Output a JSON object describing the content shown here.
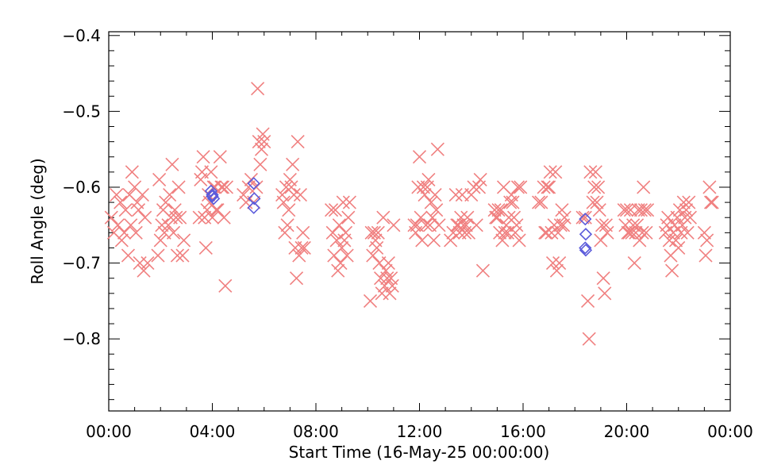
{
  "chart_data": {
    "type": "scatter",
    "xlabel": "Start Time (16-May-25 00:00:00)",
    "ylabel": "Roll Angle (deg)",
    "xlim": [
      0,
      24
    ],
    "ylim": [
      -0.9,
      -0.4
    ],
    "y_inverted": true,
    "grid": false,
    "x_ticks": [
      {
        "v": 0,
        "label": "00:00"
      },
      {
        "v": 4,
        "label": "04:00"
      },
      {
        "v": 8,
        "label": "08:00"
      },
      {
        "v": 12,
        "label": "12:00"
      },
      {
        "v": 16,
        "label": "16:00"
      },
      {
        "v": 20,
        "label": "20:00"
      },
      {
        "v": 24,
        "label": "00:00"
      }
    ],
    "y_ticks": [
      {
        "v": -0.4,
        "label": "−0.4"
      },
      {
        "v": -0.5,
        "label": "−0.5"
      },
      {
        "v": -0.6,
        "label": "−0.6"
      },
      {
        "v": -0.7,
        "label": "−0.7"
      },
      {
        "v": -0.8,
        "label": "−0.8"
      }
    ],
    "series": [
      {
        "marker": "x",
        "color": "#f08080",
        "points": [
          [
            0.1,
            -0.64
          ],
          [
            0.2,
            -0.66
          ],
          [
            0.3,
            -0.61
          ],
          [
            0.35,
            -0.65
          ],
          [
            0.45,
            -0.62
          ],
          [
            0.5,
            -0.67
          ],
          [
            0.6,
            -0.66
          ],
          [
            0.65,
            -0.63
          ],
          [
            0.75,
            -0.69
          ],
          [
            0.8,
            -0.61
          ],
          [
            0.85,
            -0.65
          ],
          [
            0.9,
            -0.58
          ],
          [
            1.0,
            -0.6
          ],
          [
            1.05,
            -0.66
          ],
          [
            1.1,
            -0.62
          ],
          [
            1.15,
            -0.63
          ],
          [
            1.2,
            -0.7
          ],
          [
            1.3,
            -0.61
          ],
          [
            1.35,
            -0.71
          ],
          [
            1.4,
            -0.64
          ],
          [
            1.5,
            -0.7
          ],
          [
            1.9,
            -0.69
          ],
          [
            1.95,
            -0.59
          ],
          [
            2.0,
            -0.67
          ],
          [
            2.05,
            -0.65
          ],
          [
            2.1,
            -0.63
          ],
          [
            2.15,
            -0.66
          ],
          [
            2.2,
            -0.62
          ],
          [
            2.3,
            -0.65
          ],
          [
            2.35,
            -0.61
          ],
          [
            2.4,
            -0.64
          ],
          [
            2.45,
            -0.57
          ],
          [
            2.5,
            -0.66
          ],
          [
            2.55,
            -0.63
          ],
          [
            2.6,
            -0.64
          ],
          [
            2.65,
            -0.69
          ],
          [
            2.7,
            -0.6
          ],
          [
            2.75,
            -0.64
          ],
          [
            2.85,
            -0.69
          ],
          [
            2.9,
            -0.67
          ],
          [
            3.5,
            -0.64
          ],
          [
            3.55,
            -0.59
          ],
          [
            3.6,
            -0.58
          ],
          [
            3.65,
            -0.56
          ],
          [
            3.7,
            -0.64
          ],
          [
            3.75,
            -0.68
          ],
          [
            3.8,
            -0.63
          ],
          [
            3.85,
            -0.61
          ],
          [
            3.9,
            -0.62
          ],
          [
            3.95,
            -0.58
          ],
          [
            4.0,
            -0.64
          ],
          [
            4.05,
            -0.6
          ],
          [
            4.1,
            -0.6
          ],
          [
            4.15,
            -0.63
          ],
          [
            4.2,
            -0.63
          ],
          [
            4.3,
            -0.56
          ],
          [
            4.35,
            -0.6
          ],
          [
            4.4,
            -0.6
          ],
          [
            4.45,
            -0.64
          ],
          [
            4.5,
            -0.73
          ],
          [
            4.55,
            -0.6
          ],
          [
            5.2,
            -0.61
          ],
          [
            5.3,
            -0.62
          ],
          [
            5.4,
            -0.6
          ],
          [
            5.5,
            -0.59
          ],
          [
            5.6,
            -0.62
          ],
          [
            5.7,
            -0.6
          ],
          [
            5.75,
            -0.47
          ],
          [
            5.8,
            -0.54
          ],
          [
            5.85,
            -0.57
          ],
          [
            5.9,
            -0.55
          ],
          [
            5.95,
            -0.53
          ],
          [
            6.0,
            -0.54
          ],
          [
            6.7,
            -0.61
          ],
          [
            6.75,
            -0.62
          ],
          [
            6.8,
            -0.66
          ],
          [
            6.85,
            -0.6
          ],
          [
            6.9,
            -0.65
          ],
          [
            6.95,
            -0.63
          ],
          [
            7.0,
            -0.59
          ],
          [
            7.05,
            -0.6
          ],
          [
            7.1,
            -0.57
          ],
          [
            7.15,
            -0.61
          ],
          [
            7.2,
            -0.68
          ],
          [
            7.25,
            -0.72
          ],
          [
            7.3,
            -0.54
          ],
          [
            7.35,
            -0.69
          ],
          [
            7.4,
            -0.61
          ],
          [
            7.45,
            -0.68
          ],
          [
            7.5,
            -0.66
          ],
          [
            7.55,
            -0.68
          ],
          [
            8.6,
            -0.63
          ],
          [
            8.65,
            -0.66
          ],
          [
            8.7,
            -0.69
          ],
          [
            8.75,
            -0.63
          ],
          [
            8.8,
            -0.67
          ],
          [
            8.85,
            -0.71
          ],
          [
            8.9,
            -0.65
          ],
          [
            8.95,
            -0.7
          ],
          [
            9.0,
            -0.68
          ],
          [
            9.05,
            -0.62
          ],
          [
            9.1,
            -0.67
          ],
          [
            9.15,
            -0.66
          ],
          [
            9.2,
            -0.69
          ],
          [
            9.25,
            -0.64
          ],
          [
            9.3,
            -0.62
          ],
          [
            10.1,
            -0.75
          ],
          [
            10.15,
            -0.66
          ],
          [
            10.2,
            -0.69
          ],
          [
            10.25,
            -0.66
          ],
          [
            10.3,
            -0.67
          ],
          [
            10.35,
            -0.68
          ],
          [
            10.4,
            -0.66
          ],
          [
            10.45,
            -0.7
          ],
          [
            10.5,
            -0.72
          ],
          [
            10.55,
            -0.74
          ],
          [
            10.6,
            -0.64
          ],
          [
            10.65,
            -0.73
          ],
          [
            10.7,
            -0.71
          ],
          [
            10.75,
            -0.72
          ],
          [
            10.8,
            -0.7
          ],
          [
            10.85,
            -0.74
          ],
          [
            10.9,
            -0.72
          ],
          [
            10.95,
            -0.73
          ],
          [
            11.0,
            -0.65
          ],
          [
            11.8,
            -0.65
          ],
          [
            11.85,
            -0.66
          ],
          [
            11.9,
            -0.65
          ],
          [
            11.95,
            -0.6
          ],
          [
            12.0,
            -0.56
          ],
          [
            12.05,
            -0.64
          ],
          [
            12.1,
            -0.67
          ],
          [
            12.15,
            -0.6
          ],
          [
            12.2,
            -0.61
          ],
          [
            12.25,
            -0.65
          ],
          [
            12.3,
            -0.6
          ],
          [
            12.35,
            -0.59
          ],
          [
            12.4,
            -0.65
          ],
          [
            12.45,
            -0.62
          ],
          [
            12.5,
            -0.64
          ],
          [
            12.55,
            -0.67
          ],
          [
            12.6,
            -0.61
          ],
          [
            12.65,
            -0.63
          ],
          [
            12.7,
            -0.55
          ],
          [
            12.75,
            -0.65
          ],
          [
            13.2,
            -0.67
          ],
          [
            13.3,
            -0.66
          ],
          [
            13.4,
            -0.61
          ],
          [
            13.45,
            -0.65
          ],
          [
            13.5,
            -0.65
          ],
          [
            13.55,
            -0.66
          ],
          [
            13.6,
            -0.64
          ],
          [
            13.65,
            -0.61
          ],
          [
            13.7,
            -0.65
          ],
          [
            13.75,
            -0.66
          ],
          [
            13.8,
            -0.65
          ],
          [
            13.85,
            -0.64
          ],
          [
            13.9,
            -0.66
          ],
          [
            14.0,
            -0.61
          ],
          [
            14.1,
            -0.6
          ],
          [
            14.2,
            -0.65
          ],
          [
            14.3,
            -0.6
          ],
          [
            14.35,
            -0.59
          ],
          [
            14.45,
            -0.71
          ],
          [
            14.9,
            -0.63
          ],
          [
            14.95,
            -0.64
          ],
          [
            15.0,
            -0.64
          ],
          [
            15.05,
            -0.63
          ],
          [
            15.1,
            -0.66
          ],
          [
            15.15,
            -0.63
          ],
          [
            15.2,
            -0.67
          ],
          [
            15.25,
            -0.6
          ],
          [
            15.3,
            -0.66
          ],
          [
            15.35,
            -0.65
          ],
          [
            15.4,
            -0.66
          ],
          [
            15.45,
            -0.64
          ],
          [
            15.5,
            -0.62
          ],
          [
            15.55,
            -0.61
          ],
          [
            15.6,
            -0.62
          ],
          [
            15.65,
            -0.64
          ],
          [
            15.7,
            -0.66
          ],
          [
            15.75,
            -0.65
          ],
          [
            15.8,
            -0.6
          ],
          [
            15.85,
            -0.67
          ],
          [
            15.9,
            -0.6
          ],
          [
            16.6,
            -0.62
          ],
          [
            16.7,
            -0.62
          ],
          [
            16.8,
            -0.6
          ],
          [
            16.85,
            -0.66
          ],
          [
            16.9,
            -0.66
          ],
          [
            16.95,
            -0.6
          ],
          [
            17.0,
            -0.6
          ],
          [
            17.05,
            -0.58
          ],
          [
            17.1,
            -0.66
          ],
          [
            17.15,
            -0.7
          ],
          [
            17.2,
            -0.65
          ],
          [
            17.25,
            -0.58
          ],
          [
            17.3,
            -0.71
          ],
          [
            17.35,
            -0.66
          ],
          [
            17.4,
            -0.7
          ],
          [
            17.45,
            -0.65
          ],
          [
            17.5,
            -0.63
          ],
          [
            17.55,
            -0.65
          ],
          [
            17.6,
            -0.64
          ],
          [
            18.3,
            -0.64
          ],
          [
            18.4,
            -0.64
          ],
          [
            18.5,
            -0.75
          ],
          [
            18.55,
            -0.8
          ],
          [
            18.6,
            -0.58
          ],
          [
            18.7,
            -0.62
          ],
          [
            18.75,
            -0.6
          ],
          [
            18.8,
            -0.58
          ],
          [
            18.85,
            -0.62
          ],
          [
            18.9,
            -0.6
          ],
          [
            18.95,
            -0.63
          ],
          [
            19.0,
            -0.67
          ],
          [
            19.05,
            -0.65
          ],
          [
            19.1,
            -0.72
          ],
          [
            19.15,
            -0.74
          ],
          [
            19.2,
            -0.65
          ],
          [
            19.25,
            -0.66
          ],
          [
            19.9,
            -0.63
          ],
          [
            19.95,
            -0.65
          ],
          [
            20.0,
            -0.63
          ],
          [
            20.05,
            -0.66
          ],
          [
            20.1,
            -0.66
          ],
          [
            20.15,
            -0.63
          ],
          [
            20.2,
            -0.66
          ],
          [
            20.25,
            -0.65
          ],
          [
            20.3,
            -0.7
          ],
          [
            20.35,
            -0.66
          ],
          [
            20.4,
            -0.65
          ],
          [
            20.45,
            -0.63
          ],
          [
            20.5,
            -0.67
          ],
          [
            20.55,
            -0.63
          ],
          [
            20.6,
            -0.66
          ],
          [
            20.65,
            -0.6
          ],
          [
            20.7,
            -0.63
          ],
          [
            20.75,
            -0.66
          ],
          [
            20.8,
            -0.63
          ],
          [
            21.5,
            -0.66
          ],
          [
            21.55,
            -0.65
          ],
          [
            21.6,
            -0.64
          ],
          [
            21.65,
            -0.67
          ],
          [
            21.7,
            -0.69
          ],
          [
            21.75,
            -0.71
          ],
          [
            21.8,
            -0.66
          ],
          [
            21.85,
            -0.65
          ],
          [
            21.9,
            -0.67
          ],
          [
            21.95,
            -0.64
          ],
          [
            22.0,
            -0.68
          ],
          [
            22.05,
            -0.63
          ],
          [
            22.1,
            -0.66
          ],
          [
            22.15,
            -0.65
          ],
          [
            22.2,
            -0.62
          ],
          [
            22.25,
            -0.64
          ],
          [
            22.3,
            -0.63
          ],
          [
            22.35,
            -0.66
          ],
          [
            22.4,
            -0.62
          ],
          [
            22.45,
            -0.64
          ],
          [
            23.0,
            -0.66
          ],
          [
            23.05,
            -0.69
          ],
          [
            23.1,
            -0.67
          ],
          [
            23.2,
            -0.6
          ],
          [
            23.25,
            -0.62
          ],
          [
            23.3,
            -0.62
          ]
        ]
      },
      {
        "marker": "diamond",
        "color": "#5b5bdb",
        "points": [
          [
            3.95,
            -0.605
          ],
          [
            4.0,
            -0.61
          ],
          [
            4.05,
            -0.615
          ],
          [
            4.0,
            -0.612
          ],
          [
            5.6,
            -0.595
          ],
          [
            5.62,
            -0.615
          ],
          [
            5.6,
            -0.627
          ],
          [
            18.4,
            -0.642
          ],
          [
            18.42,
            -0.662
          ],
          [
            18.4,
            -0.68
          ],
          [
            18.42,
            -0.683
          ]
        ]
      }
    ]
  }
}
